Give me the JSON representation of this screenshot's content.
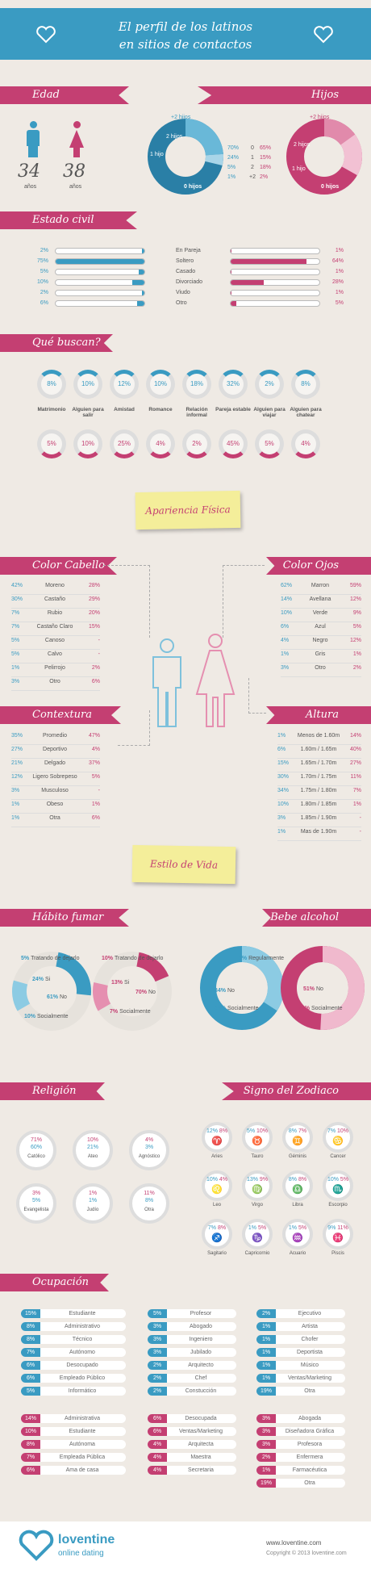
{
  "header": {
    "line1": "El perfil de los latinos",
    "line2": "en sitios de contactos"
  },
  "colors": {
    "pink": "#c43f72",
    "blue": "#3a9bc2",
    "bg": "#efeae4",
    "note": "#f4ee9a"
  },
  "edad": {
    "title": "Edad",
    "male": "34",
    "female": "38",
    "unit": "años"
  },
  "hijos": {
    "title": "Hijos",
    "labels": [
      "+2 hijos",
      "2 hijos",
      "1 hijo",
      "0 hijos"
    ],
    "rows": [
      {
        "m": "70%",
        "n": "0",
        "f": "65%"
      },
      {
        "m": "24%",
        "n": "1",
        "f": "15%"
      },
      {
        "m": "5%",
        "n": "2",
        "f": "18%"
      },
      {
        "m": "1%",
        "n": "+2",
        "f": "2%"
      }
    ]
  },
  "civil": {
    "title": "Estado civil",
    "rows": [
      {
        "m": "2%",
        "label": "En Pareja",
        "f": "1%"
      },
      {
        "m": "75%",
        "label": "Soltero",
        "f": "64%"
      },
      {
        "m": "5%",
        "label": "Casado",
        "f": "1%"
      },
      {
        "m": "10%",
        "label": "Divorciado",
        "f": "28%"
      },
      {
        "m": "2%",
        "label": "Viudo",
        "f": "1%"
      },
      {
        "m": "6%",
        "label": "Otro",
        "f": "5%"
      }
    ]
  },
  "buscan": {
    "title": "Qué buscan?",
    "items": [
      {
        "m": "8%",
        "label": "Matrimonio",
        "f": "5%"
      },
      {
        "m": "10%",
        "label": "Alguien para salir",
        "f": "10%"
      },
      {
        "m": "12%",
        "label": "Amistad",
        "f": "25%"
      },
      {
        "m": "10%",
        "label": "Romance",
        "f": "4%"
      },
      {
        "m": "18%",
        "label": "Relación informal",
        "f": "2%"
      },
      {
        "m": "32%",
        "label": "Pareja estable",
        "f": "45%"
      },
      {
        "m": "2%",
        "label": "Alguien para viajar",
        "f": "5%"
      },
      {
        "m": "8%",
        "label": "Alguien para chatear",
        "f": "4%"
      }
    ]
  },
  "apariencia": "Apariencia Física",
  "cabello": {
    "title": "Color Cabello",
    "rows": [
      {
        "m": "42%",
        "label": "Moreno",
        "f": "28%"
      },
      {
        "m": "30%",
        "label": "Castaño",
        "f": "29%"
      },
      {
        "m": "7%",
        "label": "Rubio",
        "f": "20%"
      },
      {
        "m": "7%",
        "label": "Castaño Claro",
        "f": "15%"
      },
      {
        "m": "5%",
        "label": "Canoso",
        "f": "-"
      },
      {
        "m": "5%",
        "label": "Calvo",
        "f": "-"
      },
      {
        "m": "1%",
        "label": "Pelirrojo",
        "f": "2%"
      },
      {
        "m": "3%",
        "label": "Otro",
        "f": "6%"
      }
    ]
  },
  "ojos": {
    "title": "Color Ojos",
    "rows": [
      {
        "m": "62%",
        "label": "Marron",
        "f": "59%"
      },
      {
        "m": "14%",
        "label": "Avellana",
        "f": "12%"
      },
      {
        "m": "10%",
        "label": "Verde",
        "f": "9%"
      },
      {
        "m": "6%",
        "label": "Azul",
        "f": "5%"
      },
      {
        "m": "4%",
        "label": "Negro",
        "f": "12%"
      },
      {
        "m": "1%",
        "label": "Gris",
        "f": "1%"
      },
      {
        "m": "3%",
        "label": "Otro",
        "f": "2%"
      }
    ]
  },
  "contextura": {
    "title": "Contextura Física",
    "rows": [
      {
        "m": "35%",
        "label": "Promedio",
        "f": "47%"
      },
      {
        "m": "27%",
        "label": "Deportivo",
        "f": "4%"
      },
      {
        "m": "21%",
        "label": "Delgado",
        "f": "37%"
      },
      {
        "m": "12%",
        "label": "Ligero Sobrepeso",
        "f": "5%"
      },
      {
        "m": "3%",
        "label": "Musculoso",
        "f": "-"
      },
      {
        "m": "1%",
        "label": "Obeso",
        "f": "1%"
      },
      {
        "m": "1%",
        "label": "Otra",
        "f": "6%"
      }
    ]
  },
  "altura": {
    "title": "Altura",
    "rows": [
      {
        "m": "1%",
        "label": "Menos de 1.60m",
        "f": "14%"
      },
      {
        "m": "6%",
        "label": "1.60m / 1.65m",
        "f": "40%"
      },
      {
        "m": "15%",
        "label": "1.65m / 1.70m",
        "f": "27%"
      },
      {
        "m": "30%",
        "label": "1.70m / 1.75m",
        "f": "11%"
      },
      {
        "m": "34%",
        "label": "1.75m / 1.80m",
        "f": "7%"
      },
      {
        "m": "10%",
        "label": "1.80m / 1.85m",
        "f": "1%"
      },
      {
        "m": "3%",
        "label": "1.85m / 1.90m",
        "f": "-"
      },
      {
        "m": "1%",
        "label": "Mas de 1.90m",
        "f": "-"
      }
    ]
  },
  "estilo": "Estilo de Vida",
  "fumar": {
    "title": "Hábito fumar",
    "male": [
      {
        "v": "5%",
        "l": "Tratando de dejarlo"
      },
      {
        "v": "24%",
        "l": "Si"
      },
      {
        "v": "61%",
        "l": "No"
      },
      {
        "v": "10%",
        "l": "Socialmente"
      }
    ],
    "female": [
      {
        "v": "10%",
        "l": "Tratando de dejarlo"
      },
      {
        "v": "13%",
        "l": "Si"
      },
      {
        "v": "70%",
        "l": "No"
      },
      {
        "v": "7%",
        "l": "Socialmente"
      }
    ]
  },
  "alcohol": {
    "title": "Bebe alcohol",
    "male": [
      {
        "v": "1%",
        "l": "Regularmente"
      },
      {
        "v": "34%",
        "l": "No"
      },
      {
        "v": "65%",
        "l": "Socialmente"
      }
    ],
    "female": [
      {
        "v": "51%",
        "l": "No"
      },
      {
        "v": "49%",
        "l": "Socialmente"
      }
    ]
  },
  "religion": {
    "title": "Religión",
    "items": [
      {
        "m": "60%",
        "f": "71%",
        "l": "Católico"
      },
      {
        "m": "21%",
        "f": "10%",
        "l": "Ateo"
      },
      {
        "m": "3%",
        "f": "4%",
        "l": "Agnóstico"
      },
      {
        "m": "5%",
        "f": "3%",
        "l": "Evangelista"
      },
      {
        "m": "1%",
        "f": "1%",
        "l": "Judío"
      },
      {
        "m": "8%",
        "f": "11%",
        "l": "Otra"
      }
    ]
  },
  "zodiaco": {
    "title": "Signo del Zodiaco",
    "items": [
      {
        "m": "12%",
        "f": "8%",
        "l": "Aries",
        "g": "♈"
      },
      {
        "m": "5%",
        "f": "10%",
        "l": "Tauro",
        "g": "♉"
      },
      {
        "m": "8%",
        "f": "7%",
        "l": "Géminis",
        "g": "♊"
      },
      {
        "m": "7%",
        "f": "10%",
        "l": "Cancer",
        "g": "♋"
      },
      {
        "m": "10%",
        "f": "4%",
        "l": "Leo",
        "g": "♌"
      },
      {
        "m": "13%",
        "f": "9%",
        "l": "Virgo",
        "g": "♍"
      },
      {
        "m": "8%",
        "f": "8%",
        "l": "Libra",
        "g": "♎"
      },
      {
        "m": "10%",
        "f": "5%",
        "l": "Escorpio",
        "g": "♏"
      },
      {
        "m": "7%",
        "f": "8%",
        "l": "Sagitario",
        "g": "♐"
      },
      {
        "m": "1%",
        "f": "5%",
        "l": "Capricornio",
        "g": "♑"
      },
      {
        "m": "1%",
        "f": "5%",
        "l": "Acuario",
        "g": "♒"
      },
      {
        "m": "9%",
        "f": "11%",
        "l": "Piscis",
        "g": "♓"
      }
    ]
  },
  "ocupacion": {
    "title": "Ocupación",
    "male": [
      [
        {
          "v": "15%",
          "l": "Estudiante"
        },
        {
          "v": "8%",
          "l": "Administrativo"
        },
        {
          "v": "8%",
          "l": "Técnico"
        },
        {
          "v": "7%",
          "l": "Autónomo"
        },
        {
          "v": "6%",
          "l": "Desocupado"
        },
        {
          "v": "6%",
          "l": "Empleado Público"
        },
        {
          "v": "5%",
          "l": "Informático"
        }
      ],
      [
        {
          "v": "5%",
          "l": "Profesor"
        },
        {
          "v": "3%",
          "l": "Abogado"
        },
        {
          "v": "3%",
          "l": "Ingeniero"
        },
        {
          "v": "3%",
          "l": "Jubilado"
        },
        {
          "v": "2%",
          "l": "Arquitecto"
        },
        {
          "v": "2%",
          "l": "Chef"
        },
        {
          "v": "2%",
          "l": "Constucción"
        }
      ],
      [
        {
          "v": "2%",
          "l": "Ejecutivo"
        },
        {
          "v": "1%",
          "l": "Artista"
        },
        {
          "v": "1%",
          "l": "Chofer"
        },
        {
          "v": "1%",
          "l": "Deportista"
        },
        {
          "v": "1%",
          "l": "Músico"
        },
        {
          "v": "1%",
          "l": "Ventas/Marketing"
        },
        {
          "v": "19%",
          "l": "Otra"
        }
      ]
    ],
    "female": [
      [
        {
          "v": "14%",
          "l": "Administrativa"
        },
        {
          "v": "10%",
          "l": "Estudiante"
        },
        {
          "v": "8%",
          "l": "Autónoma"
        },
        {
          "v": "7%",
          "l": "Empleada Pública"
        },
        {
          "v": "6%",
          "l": "Ama de casa"
        }
      ],
      [
        {
          "v": "6%",
          "l": "Desocupada"
        },
        {
          "v": "6%",
          "l": "Ventas/Marketing"
        },
        {
          "v": "4%",
          "l": "Arquitecta"
        },
        {
          "v": "4%",
          "l": "Maestra"
        },
        {
          "v": "4%",
          "l": "Secretaria"
        }
      ],
      [
        {
          "v": "3%",
          "l": "Abogada"
        },
        {
          "v": "3%",
          "l": "Diseñadora Gráfica"
        },
        {
          "v": "3%",
          "l": "Profesora"
        },
        {
          "v": "2%",
          "l": "Enfermera"
        },
        {
          "v": "1%",
          "l": "Farmacéutica"
        },
        {
          "v": "19%",
          "l": "Otra"
        }
      ]
    ]
  },
  "footer": {
    "brand": "loventine",
    "tagline": "online dating",
    "url": "www.loventine.com",
    "copy": "Copyright © 2013 loventine.com"
  }
}
